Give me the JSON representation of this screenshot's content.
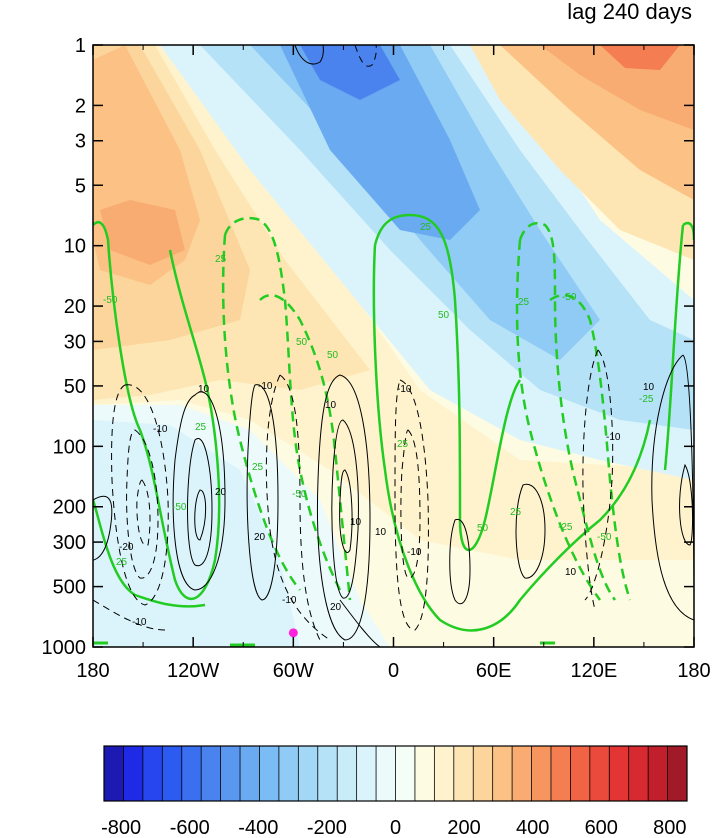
{
  "chart_data": {
    "type": "heatmap",
    "title": "lag 240 days",
    "xlabel": "",
    "ylabel": "",
    "x_ticks": [
      "180",
      "120W",
      "60W",
      "0",
      "60E",
      "120E",
      "180"
    ],
    "y_ticks": [
      "1",
      "2",
      "3",
      "5",
      "10",
      "20",
      "30",
      "50",
      "100",
      "200",
      "300",
      "500",
      "1000"
    ],
    "y_scale": "log",
    "ylim": [
      1000,
      1
    ],
    "colorbar": {
      "labels": [
        "-800",
        "-600",
        "-400",
        "-200",
        "0",
        "200",
        "400",
        "600",
        "800"
      ],
      "range": [
        -850,
        850
      ],
      "step": 50,
      "colors": [
        "#1d1ab4",
        "#1f2ae6",
        "#2746f0",
        "#2c5bf2",
        "#3a6ff0",
        "#4a83ee",
        "#5a97ef",
        "#6aaaf1",
        "#7cbcf4",
        "#8fcbf5",
        "#a2d7f6",
        "#b6e2f8",
        "#c9ecf9",
        "#dbf4fb",
        "#ecfafc",
        "#f5fdf7",
        "#fdfbe2",
        "#fef3cd",
        "#fde6b3",
        "#fcd59c",
        "#fbc185",
        "#f9ac71",
        "#f7955f",
        "#f47d51",
        "#f06445",
        "#ea4a3c",
        "#e43535",
        "#d72a30",
        "#c11f2b",
        "#a01a28"
      ]
    },
    "contour_labels_green": [
      "-25",
      "-50",
      "25",
      "50"
    ],
    "contour_labels_black": [
      "-10",
      "-20",
      "10",
      "20"
    ],
    "marker": {
      "lon": -60,
      "pressure": 850,
      "color": "#ff22dd"
    }
  }
}
